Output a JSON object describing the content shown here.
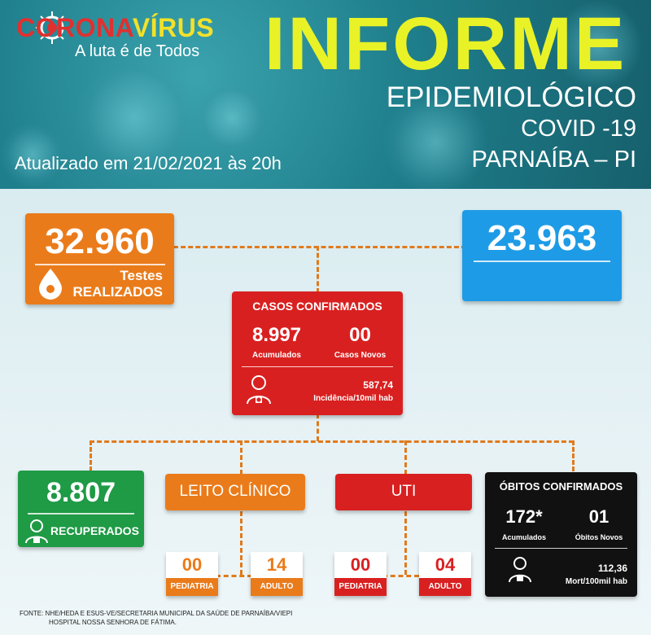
{
  "header": {
    "logo": {
      "part1": "CORONA",
      "part2": "VÍRUS",
      "tagline": "A luta é de Todos"
    },
    "title": "INFORME",
    "subtitle_lines": [
      "EPIDEMIOLÓGICO",
      "COVID -19",
      "PARNAÍBA – PI"
    ],
    "updated": "Atualizado em 21/02/2021 às 20h"
  },
  "tests": {
    "value": "32.960",
    "label_line1": "Testes",
    "label_line2": "REALIZADOS"
  },
  "blue_box": {
    "value": "23.963"
  },
  "confirmed": {
    "title": "CASOS CONFIRMADOS",
    "accumulated_value": "8.997",
    "accumulated_label": "Acumulados",
    "new_value": "00",
    "new_label": "Casos Novos",
    "incidence_value": "587,74",
    "incidence_label": "Incidência/10mil hab"
  },
  "recovered": {
    "value": "8.807",
    "label": "RECUPERADOS"
  },
  "leito_clinico": {
    "title": "LEITO CLÍNICO",
    "pediatria_value": "00",
    "pediatria_label": "PEDIATRIA",
    "adulto_value": "14",
    "adulto_label": "ADULTO"
  },
  "uti": {
    "title": "UTI",
    "pediatria_value": "00",
    "pediatria_label": "PEDIATRIA",
    "adulto_value": "04",
    "adulto_label": "ADULTO"
  },
  "deaths": {
    "title": "ÓBITOS CONFIRMADOS",
    "accumulated_value": "172*",
    "accumulated_label": "Acumulados",
    "new_value": "01",
    "new_label": "Óbitos Novos",
    "rate_value": "112,36",
    "rate_label": "Mort/100mil hab"
  },
  "footer": {
    "line1": "FONTE: NHE/HEDA E ESUS-VE/SECRETARIA MUNICIPAL DA SAÚDE DE PARNAÍBA/VIEPI",
    "line2": "HOSPITAL NOSSA SENHORA DE FÁTIMA."
  },
  "colors": {
    "orange": "#ea7b1a",
    "blue": "#1e9be6",
    "red": "#d92020",
    "green": "#1f9a45",
    "black": "#111111",
    "title_yellow": "#e8f227"
  }
}
